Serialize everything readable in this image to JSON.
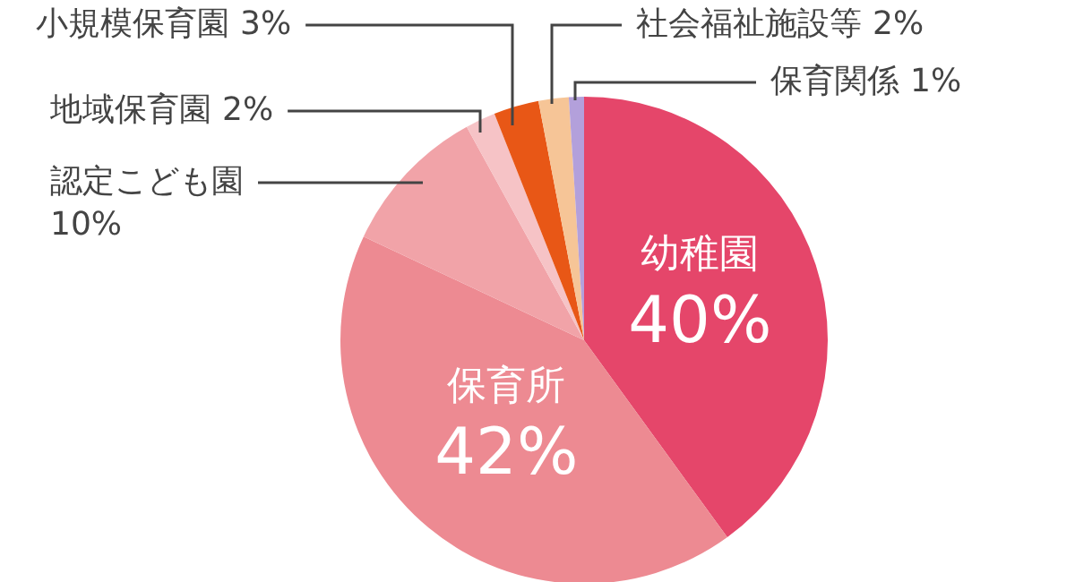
{
  "chart_data": {
    "type": "pie",
    "categories": [
      "幼稚園",
      "保育所",
      "認定こども園",
      "地域保育園",
      "小規模保育園",
      "社会福祉施設等",
      "保育関係"
    ],
    "values": [
      40,
      42,
      10,
      2,
      3,
      2,
      1
    ],
    "colors": [
      "#e5466a",
      "#ed8a92",
      "#f1a3a8",
      "#f6c3c6",
      "#e85716",
      "#f6c597",
      "#b3a0db"
    ],
    "value_labels": [
      "40%",
      "42%",
      "10%",
      "2%",
      "3%",
      "2%",
      "1%"
    ]
  }
}
